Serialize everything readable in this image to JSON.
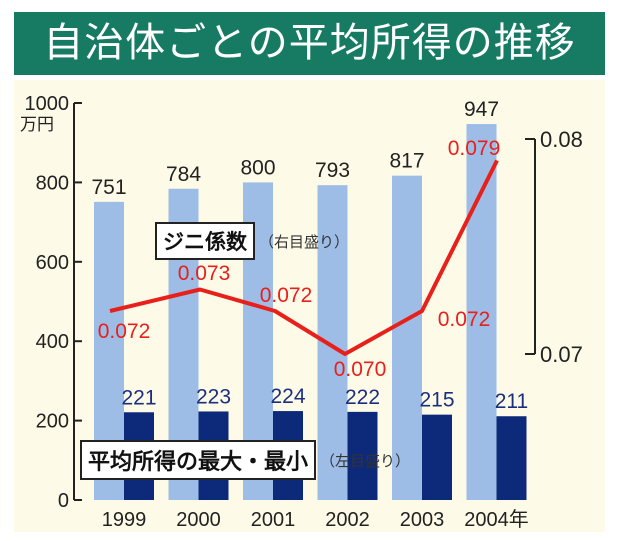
{
  "title": "自治体ごとの平均所得の推移",
  "chart_data": {
    "type": "bar",
    "title": "自治体ごとの平均所得の推移",
    "categories": [
      "1999",
      "2000",
      "2001",
      "2002",
      "2003",
      "2004年"
    ],
    "left_axis": {
      "unit": "万円",
      "ylim": [
        0,
        1000
      ],
      "ticks": [
        "0",
        "200",
        "400",
        "600",
        "800",
        "1000"
      ]
    },
    "right_axis": {
      "ylim": [
        0.07,
        0.08
      ],
      "ticks": [
        "0.07",
        "0.08"
      ]
    },
    "series": [
      {
        "name": "平均所得の最大",
        "type": "bar",
        "axis": "left",
        "color": "#9dbde6",
        "values": [
          751,
          784,
          800,
          793,
          817,
          947
        ],
        "labels": [
          "751",
          "784",
          "800",
          "793",
          "817",
          "947"
        ]
      },
      {
        "name": "平均所得の最小",
        "type": "bar",
        "axis": "left",
        "color": "#0d2a7a",
        "values": [
          221,
          223,
          224,
          222,
          215,
          211
        ],
        "labels": [
          "221",
          "223",
          "224",
          "222",
          "215",
          "211"
        ]
      },
      {
        "name": "ジニ係数",
        "type": "line",
        "axis": "right",
        "color": "#e8201c",
        "values": [
          0.072,
          0.073,
          0.072,
          0.07,
          0.072,
          0.079
        ],
        "labels": [
          "0.072",
          "0.073",
          "0.072",
          "0.070",
          "0.072",
          "0.079"
        ]
      }
    ],
    "legend": {
      "gini_label": "ジニ係数",
      "gini_note": "（右目盛り）",
      "income_label": "平均所得の最大・最小",
      "income_note": "（左目盛り）"
    }
  }
}
